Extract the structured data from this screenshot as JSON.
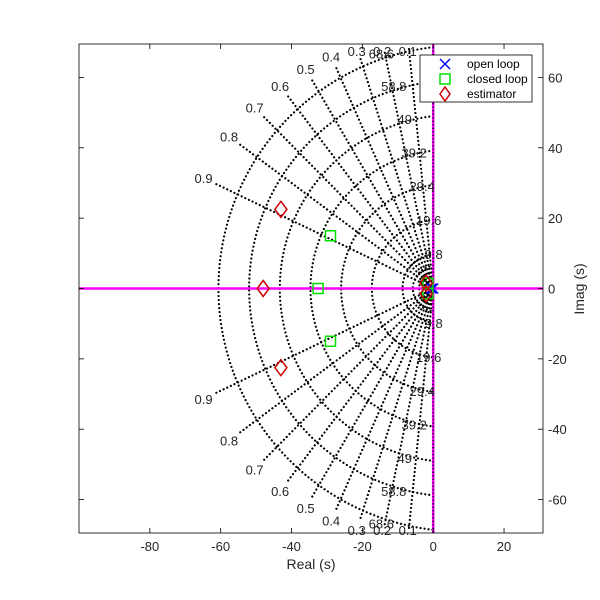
{
  "chart_data": {
    "type": "scatter",
    "title": "",
    "xlabel": "Real (s)",
    "ylabel": "Imag (s)",
    "xlim": [
      -100,
      31
    ],
    "ylim": [
      -69.5,
      69.5
    ],
    "x_ticks": [
      -80,
      -60,
      -40,
      -20,
      0,
      20
    ],
    "y_ticks": [
      -60,
      -40,
      -20,
      0,
      20,
      40,
      60
    ],
    "y_axis_side": "right",
    "legend_position": "top-right",
    "grid": {
      "type": "s-plane",
      "damping_ratios": [
        0.1,
        0.2,
        0.3,
        0.4,
        0.5,
        0.6,
        0.7,
        0.8,
        0.9
      ],
      "natural_frequencies": [
        9.8,
        19.6,
        29.4,
        39.2,
        49,
        58.8,
        68.6
      ],
      "damping_labels": [
        "0.1",
        "0.2",
        "0.3",
        "0.4",
        "0.5",
        "0.6",
        "0.7",
        "0.8",
        "0.9"
      ],
      "frequency_labels": [
        "9.8",
        "19.6",
        "29.4",
        "39.2",
        "49",
        "58.8",
        "68.6"
      ]
    },
    "axis_line_color": "#ff00ff",
    "series": [
      {
        "name": "open loop",
        "marker": "x",
        "color": "#0000ff",
        "points": [
          [
            0,
            0
          ],
          [
            -0.5,
            0
          ]
        ]
      },
      {
        "name": "closed loop",
        "marker": "square",
        "color": "#00dd00",
        "points": [
          [
            -29,
            15
          ],
          [
            -29,
            -15
          ],
          [
            -32.5,
            0
          ],
          [
            -1.5,
            1.5
          ],
          [
            -1.5,
            -1.5
          ]
        ]
      },
      {
        "name": "estimator",
        "marker": "diamond",
        "color": "#cc0000",
        "points": [
          [
            -43,
            22.5
          ],
          [
            -43,
            -22.5
          ],
          [
            -48,
            0
          ],
          [
            -2,
            1.5
          ],
          [
            -2,
            -1.5
          ]
        ]
      }
    ]
  }
}
